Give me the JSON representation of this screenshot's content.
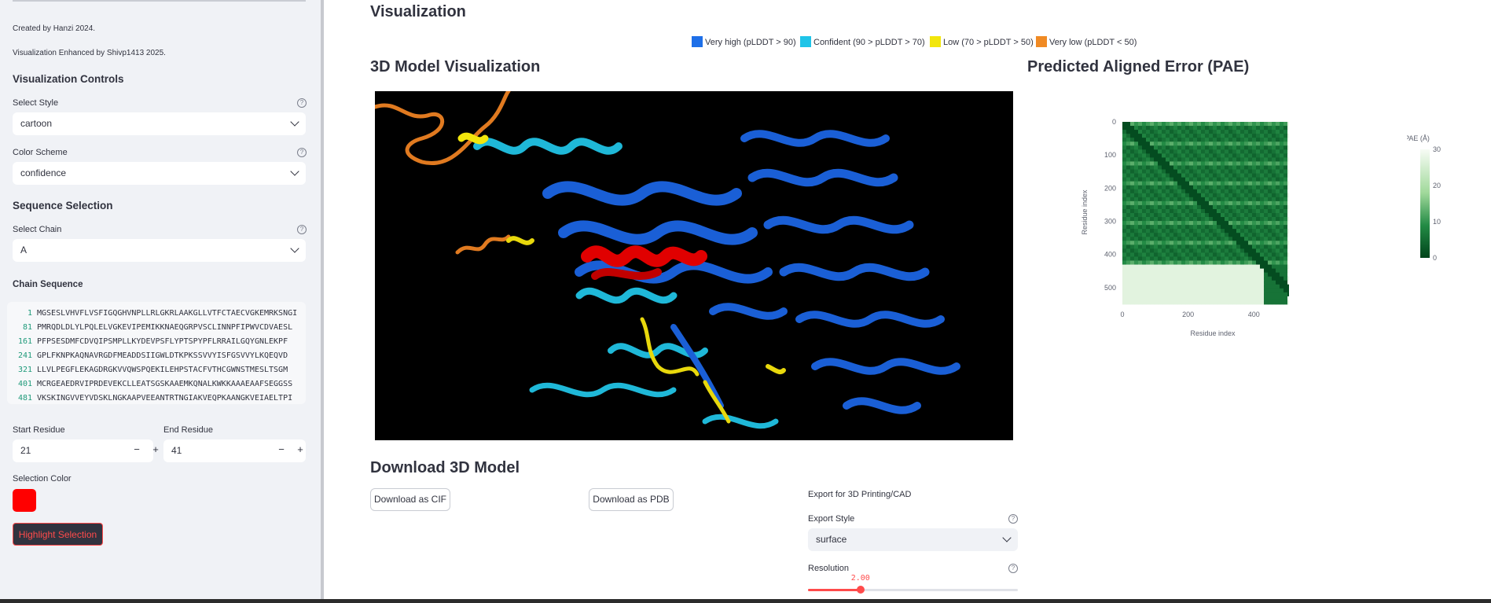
{
  "sidebar": {
    "credit1": "Created by Hanzi 2024.",
    "credit2": "Visualization Enhanced by Shivp1413 2025.",
    "viz_controls_title": "Visualization Controls",
    "select_style_label": "Select Style",
    "select_style_value": "cartoon",
    "color_scheme_label": "Color Scheme",
    "color_scheme_value": "confidence",
    "sequence_selection_title": "Sequence Selection",
    "select_chain_label": "Select Chain",
    "select_chain_value": "A",
    "chain_sequence_title": "Chain Sequence",
    "sequence_lines": [
      {
        "num": "1",
        "seq": "MGSESLVHVFLVSFIGQGHVNPLLRLGKRLAAKGLLVTFCTAECVGKEMRKSNGI"
      },
      {
        "num": "81",
        "seq": "PMRQDLDLYLPQLELVGKEVIPEMIKKNAEQGRPVSCLINNPFIPWVCDVAESL"
      },
      {
        "num": "161",
        "seq": "PFPSESDMFCDVQIPSMPLLKYDEVPSFLYPTSPYPFLRRAILGQYGNLEKPF"
      },
      {
        "num": "241",
        "seq": "GPLFKNPKAQNAVRGDFMEADDSIIGWLDTKPKSSVVYISFGSVVYLKQEQVD"
      },
      {
        "num": "321",
        "seq": "LLVLPEGFLEKAGDRGKVVQWSPQEKILEHPSTACFVTHCGWNSTMESLTSGM"
      },
      {
        "num": "401",
        "seq": "MCRGEAEDRVIPRDEVEKCLLEATSGSKAAEMKQNALKWKKAAAEAAFSEGGSS"
      },
      {
        "num": "481",
        "seq": "VKSKINGVVEYVDSKLNGKAAPVEEANTRTNGIAKVEQPKAANGKVEIAELTPI"
      }
    ],
    "start_residue_label": "Start Residue",
    "start_residue_value": "21",
    "end_residue_label": "End Residue",
    "end_residue_value": "41",
    "minus": "−",
    "plus": "+",
    "selection_color_label": "Selection Color",
    "selection_color": "#ff0000",
    "highlight_button": "Highlight Selection",
    "help_glyph": "?"
  },
  "main": {
    "title": "Visualization",
    "legend": [
      {
        "label": "Very high (pLDDT > 90)",
        "color": "#1e6fe8"
      },
      {
        "label": "Confident (90 > pLDDT > 70)",
        "color": "#1fc4e8"
      },
      {
        "label": "Low (70 > pLDDT > 50)",
        "color": "#f2e60c"
      },
      {
        "label": "Very low (pLDDT < 50)",
        "color": "#f08a24"
      }
    ],
    "model_title": "3D Model Visualization",
    "pae_title": "Predicted Aligned Error (PAE)",
    "download_title": "Download 3D Model",
    "download_cif": "Download as CIF",
    "download_pdb": "Download as PDB",
    "export_title": "Export for 3D Printing/CAD",
    "export_style_label": "Export Style",
    "export_style_value": "surface",
    "resolution_label": "Resolution",
    "resolution_value": "2.00",
    "resolution_fraction": 0.25
  },
  "chart_data": {
    "type": "heatmap",
    "title": "",
    "xlabel": "Residue index",
    "ylabel": "Residue index",
    "x_ticks": [
      "0",
      "200",
      "400"
    ],
    "y_ticks": [
      "0",
      "100",
      "200",
      "300",
      "400",
      "500"
    ],
    "xlim": [
      0,
      550
    ],
    "ylim": [
      0,
      550
    ],
    "colorbar_title": "PAE (Å)",
    "colorbar_ticks": [
      "30",
      "20",
      "10",
      "0"
    ],
    "colorbar_range": [
      0,
      30
    ],
    "colorscale": [
      "#00441b",
      "#f7fcf5"
    ]
  }
}
